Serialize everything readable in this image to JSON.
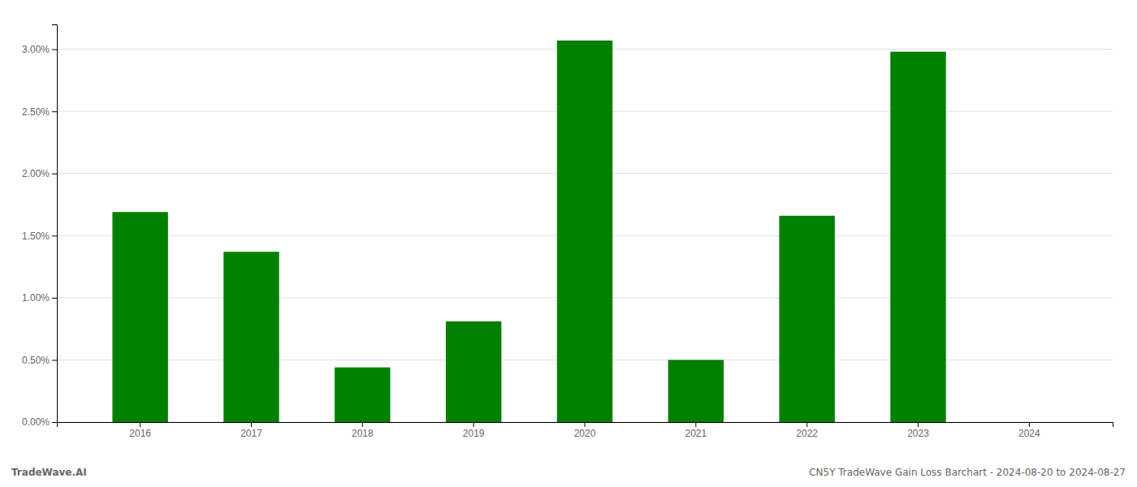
{
  "chart_data": {
    "type": "bar",
    "title": "CN5Y TradeWave Gain Loss Barchart - 2024-08-20 to 2024-08-27",
    "annotations": [
      "TradeWave.AI"
    ],
    "categories": [
      "2016",
      "2017",
      "2018",
      "2019",
      "2020",
      "2021",
      "2022",
      "2023",
      "2024"
    ],
    "values": [
      0.0169,
      0.0137,
      0.0044,
      0.0081,
      0.0307,
      0.005,
      0.0166,
      0.0298,
      0.0
    ],
    "color": "#008000",
    "ylim": [
      0.0,
      0.032
    ],
    "yticks": [
      {
        "value": 0.0,
        "label": "0.00%"
      },
      {
        "value": 0.005,
        "label": "0.50%"
      },
      {
        "value": 0.01,
        "label": "1.00%"
      },
      {
        "value": 0.015,
        "label": "1.50%"
      },
      {
        "value": 0.02,
        "label": "2.00%"
      },
      {
        "value": 0.025,
        "label": "2.50%"
      },
      {
        "value": 0.03,
        "label": "3.00%"
      }
    ],
    "grid": true
  }
}
